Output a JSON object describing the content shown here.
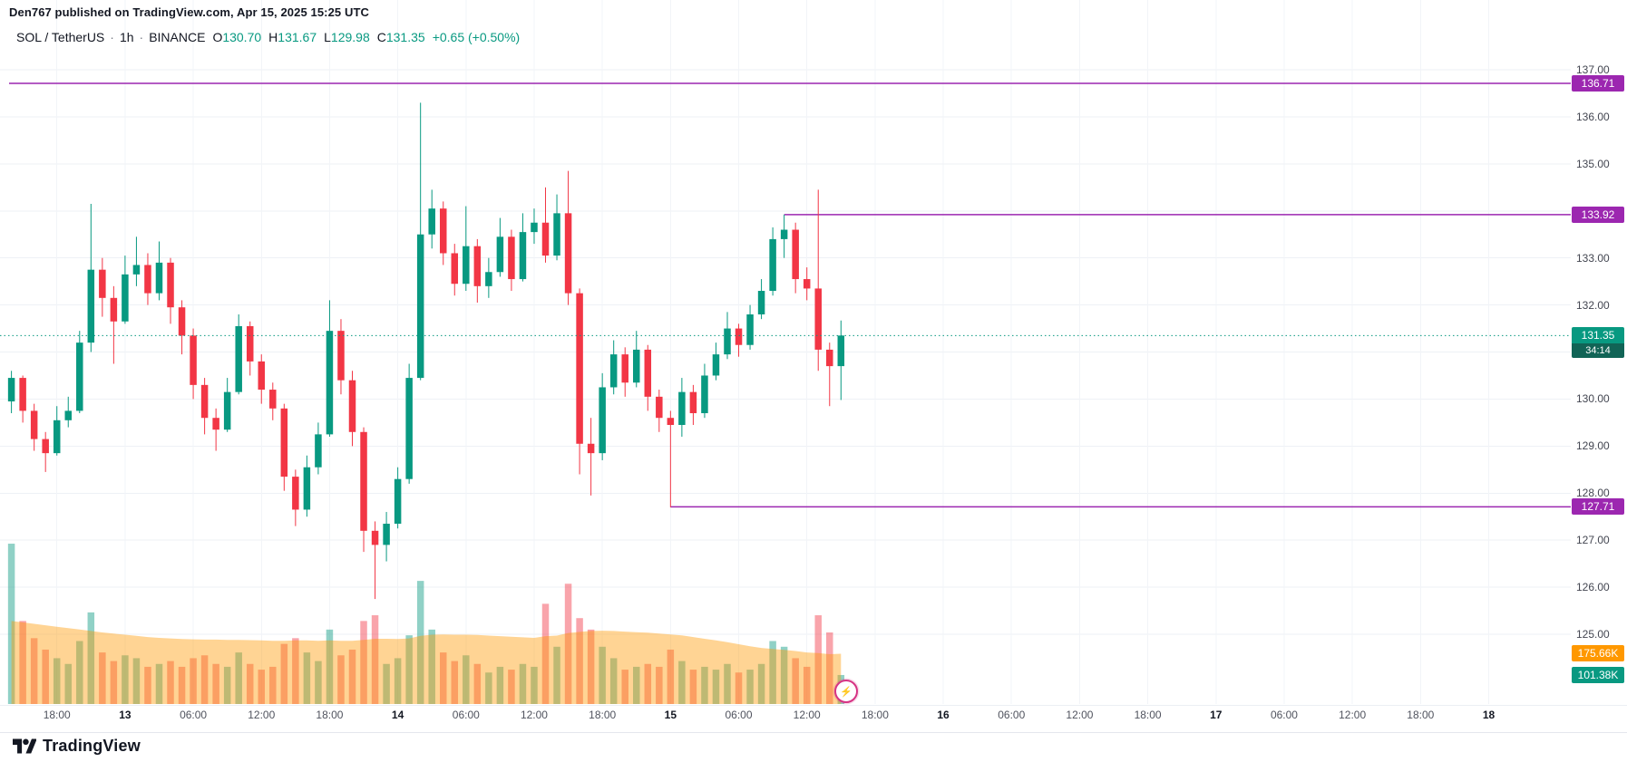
{
  "publisher_line": "Den767 published on TradingView.com, Apr 15, 2025 15:25 UTC",
  "legend": {
    "symbol": "SOL / TetherUS",
    "separator": "·",
    "interval": "1h",
    "exchange": "BINANCE",
    "o_label": "O",
    "o": "130.70",
    "h_label": "H",
    "h": "131.67",
    "l_label": "L",
    "l": "129.98",
    "c_label": "C",
    "c": "131.35",
    "change": "+0.65 (+0.50%)"
  },
  "price_axis": {
    "labels": [
      "137.00",
      "136.00",
      "135.00",
      "134.00",
      "133.00",
      "132.00",
      "131.00",
      "130.00",
      "129.00",
      "128.00",
      "127.00",
      "126.00",
      "125.00"
    ]
  },
  "time_axis": {
    "items": [
      {
        "index": 4,
        "label": "18:00",
        "bold": false
      },
      {
        "index": 10,
        "label": "13",
        "bold": true
      },
      {
        "index": 16,
        "label": "06:00",
        "bold": false
      },
      {
        "index": 22,
        "label": "12:00",
        "bold": false
      },
      {
        "index": 28,
        "label": "18:00",
        "bold": false
      },
      {
        "index": 34,
        "label": "14",
        "bold": true
      },
      {
        "index": 40,
        "label": "06:00",
        "bold": false
      },
      {
        "index": 46,
        "label": "12:00",
        "bold": false
      },
      {
        "index": 52,
        "label": "18:00",
        "bold": false
      },
      {
        "index": 58,
        "label": "15",
        "bold": true
      },
      {
        "index": 64,
        "label": "06:00",
        "bold": false
      },
      {
        "index": 70,
        "label": "12:00",
        "bold": false
      },
      {
        "index": 76,
        "label": "18:00",
        "bold": false
      },
      {
        "index": 82,
        "label": "16",
        "bold": true
      },
      {
        "index": 88,
        "label": "06:00",
        "bold": false
      },
      {
        "index": 94,
        "label": "12:00",
        "bold": false
      },
      {
        "index": 100,
        "label": "18:00",
        "bold": false
      },
      {
        "index": 106,
        "label": "17",
        "bold": true
      },
      {
        "index": 112,
        "label": "06:00",
        "bold": false
      },
      {
        "index": 118,
        "label": "12:00",
        "bold": false
      },
      {
        "index": 124,
        "label": "18:00",
        "bold": false
      },
      {
        "index": 130,
        "label": "18",
        "bold": true
      }
    ]
  },
  "badges": {
    "level_1": "136.71",
    "level_2": "133.92",
    "level_3": "127.71",
    "last_price": "131.35",
    "countdown": "34:14",
    "volume_ma": "175.66K",
    "volume": "101.38K"
  },
  "footer": {
    "brand": "TradingView"
  },
  "marker": {
    "emoji": "⚡"
  },
  "colors": {
    "up": "#089981",
    "down": "#f23645",
    "purple": "#9c27b0",
    "orange": "#ff9800",
    "countdown": "#116456"
  },
  "chart_data": {
    "type": "candlestick",
    "symbol": "SOL / TetherUS",
    "exchange": "BINANCE",
    "interval": "1h",
    "legend_ohlc": {
      "open": 130.7,
      "high": 131.67,
      "low": 129.98,
      "close": 131.35,
      "change": 0.65,
      "change_pct": 0.5
    },
    "axis": {
      "price_min": 125,
      "price_max": 137,
      "grid_step": 1
    },
    "last_price": 131.35,
    "horizontal_lines": [
      {
        "price": 136.71,
        "from_index": 0
      },
      {
        "price": 133.92,
        "from_index": 68
      },
      {
        "price": 127.71,
        "from_index": 58
      }
    ],
    "volume_last_k": 101.38,
    "volume_ma_last_k": 175.66,
    "columns": [
      "time",
      "open",
      "high",
      "low",
      "close",
      "volume_k"
    ],
    "candles": [
      [
        "Apr 12 14:00",
        129.95,
        130.6,
        129.7,
        130.45,
        560
      ],
      [
        "Apr 12 15:00",
        130.45,
        130.5,
        129.5,
        129.75,
        290
      ],
      [
        "Apr 12 16:00",
        129.75,
        129.9,
        128.9,
        129.15,
        230
      ],
      [
        "Apr 12 17:00",
        129.15,
        129.3,
        128.45,
        128.85,
        190
      ],
      [
        "Apr 12 18:00",
        128.85,
        129.85,
        128.8,
        129.55,
        160
      ],
      [
        "Apr 12 19:00",
        129.55,
        130.05,
        129.4,
        129.75,
        140
      ],
      [
        "Apr 12 20:00",
        129.75,
        131.45,
        129.7,
        131.2,
        220
      ],
      [
        "Apr 12 21:00",
        131.2,
        134.15,
        131.0,
        132.75,
        320
      ],
      [
        "Apr 12 22:00",
        132.75,
        133.0,
        131.75,
        132.15,
        180
      ],
      [
        "Apr 12 23:00",
        132.15,
        132.4,
        130.75,
        131.65,
        150
      ],
      [
        "Apr 13 00:00",
        131.65,
        133.05,
        131.6,
        132.65,
        170
      ],
      [
        "Apr 13 01:00",
        132.65,
        133.45,
        132.4,
        132.85,
        160
      ],
      [
        "Apr 13 02:00",
        132.85,
        133.1,
        132.0,
        132.25,
        130
      ],
      [
        "Apr 13 03:00",
        132.25,
        133.35,
        132.1,
        132.9,
        140
      ],
      [
        "Apr 13 04:00",
        132.9,
        133.0,
        131.6,
        131.95,
        150
      ],
      [
        "Apr 13 05:00",
        131.95,
        132.1,
        130.95,
        131.35,
        130
      ],
      [
        "Apr 13 06:00",
        131.35,
        131.5,
        130.0,
        130.3,
        160
      ],
      [
        "Apr 13 07:00",
        130.3,
        130.45,
        129.25,
        129.6,
        170
      ],
      [
        "Apr 13 08:00",
        129.6,
        129.8,
        128.9,
        129.35,
        140
      ],
      [
        "Apr 13 09:00",
        129.35,
        130.45,
        129.3,
        130.15,
        130
      ],
      [
        "Apr 13 10:00",
        130.15,
        131.8,
        130.1,
        131.55,
        180
      ],
      [
        "Apr 13 11:00",
        131.55,
        131.65,
        130.5,
        130.8,
        140
      ],
      [
        "Apr 13 12:00",
        130.8,
        130.95,
        129.9,
        130.2,
        120
      ],
      [
        "Apr 13 13:00",
        130.2,
        130.35,
        129.55,
        129.8,
        130
      ],
      [
        "Apr 13 14:00",
        129.8,
        129.9,
        128.05,
        128.35,
        210
      ],
      [
        "Apr 13 15:00",
        128.35,
        128.5,
        127.3,
        127.65,
        230
      ],
      [
        "Apr 13 16:00",
        127.65,
        128.8,
        127.5,
        128.55,
        180
      ],
      [
        "Apr 13 17:00",
        128.55,
        129.5,
        128.4,
        129.25,
        150
      ],
      [
        "Apr 13 18:00",
        129.25,
        132.1,
        129.2,
        131.45,
        260
      ],
      [
        "Apr 13 19:00",
        131.45,
        131.7,
        130.1,
        130.4,
        170
      ],
      [
        "Apr 13 20:00",
        130.4,
        130.6,
        129.0,
        129.3,
        190
      ],
      [
        "Apr 13 21:00",
        129.3,
        129.4,
        126.75,
        127.2,
        290
      ],
      [
        "Apr 13 22:00",
        127.2,
        127.4,
        125.75,
        126.9,
        310
      ],
      [
        "Apr 13 23:00",
        126.9,
        127.6,
        126.55,
        127.35,
        140
      ],
      [
        "Apr 14 00:00",
        127.35,
        128.55,
        127.25,
        128.3,
        160
      ],
      [
        "Apr 14 01:00",
        128.3,
        130.75,
        128.2,
        130.45,
        240
      ],
      [
        "Apr 14 02:00",
        130.45,
        136.3,
        130.4,
        133.5,
        430
      ],
      [
        "Apr 14 03:00",
        133.5,
        134.45,
        133.2,
        134.05,
        260
      ],
      [
        "Apr 14 04:00",
        134.05,
        134.2,
        132.85,
        133.1,
        180
      ],
      [
        "Apr 14 05:00",
        133.1,
        133.3,
        132.2,
        132.45,
        150
      ],
      [
        "Apr 14 06:00",
        132.45,
        134.1,
        132.3,
        133.25,
        170
      ],
      [
        "Apr 14 07:00",
        133.25,
        133.4,
        132.05,
        132.4,
        140
      ],
      [
        "Apr 14 08:00",
        132.4,
        133.0,
        132.15,
        132.7,
        110
      ],
      [
        "Apr 14 09:00",
        132.7,
        133.85,
        132.6,
        133.45,
        130
      ],
      [
        "Apr 14 10:00",
        133.45,
        133.6,
        132.3,
        132.55,
        120
      ],
      [
        "Apr 14 11:00",
        132.55,
        133.95,
        132.5,
        133.55,
        140
      ],
      [
        "Apr 14 12:00",
        133.55,
        134.05,
        133.3,
        133.75,
        130
      ],
      [
        "Apr 14 13:00",
        133.75,
        134.5,
        132.9,
        133.05,
        350
      ],
      [
        "Apr 14 14:00",
        133.05,
        134.35,
        132.95,
        133.95,
        200
      ],
      [
        "Apr 14 15:00",
        133.95,
        134.85,
        132.0,
        132.25,
        420
      ],
      [
        "Apr 14 16:00",
        132.25,
        132.35,
        128.4,
        129.05,
        300
      ],
      [
        "Apr 14 17:00",
        129.05,
        129.6,
        127.95,
        128.85,
        260
      ],
      [
        "Apr 14 18:00",
        128.85,
        130.55,
        128.7,
        130.25,
        200
      ],
      [
        "Apr 14 19:00",
        130.25,
        131.25,
        130.1,
        130.95,
        160
      ],
      [
        "Apr 14 20:00",
        130.95,
        131.1,
        130.05,
        130.35,
        120
      ],
      [
        "Apr 14 21:00",
        130.35,
        131.45,
        130.25,
        131.05,
        130
      ],
      [
        "Apr 14 22:00",
        131.05,
        131.15,
        129.75,
        130.05,
        140
      ],
      [
        "Apr 14 23:00",
        130.05,
        130.2,
        129.3,
        129.6,
        130
      ],
      [
        "Apr 15 00:00",
        129.6,
        129.75,
        127.7,
        129.45,
        190
      ],
      [
        "Apr 15 01:00",
        129.45,
        130.45,
        129.2,
        130.15,
        150
      ],
      [
        "Apr 15 02:00",
        130.15,
        130.3,
        129.45,
        129.7,
        120
      ],
      [
        "Apr 15 03:00",
        129.7,
        130.75,
        129.6,
        130.5,
        130
      ],
      [
        "Apr 15 04:00",
        130.5,
        131.2,
        130.4,
        130.95,
        120
      ],
      [
        "Apr 15 05:00",
        130.95,
        131.85,
        130.85,
        131.5,
        140
      ],
      [
        "Apr 15 06:00",
        131.5,
        131.6,
        130.9,
        131.15,
        110
      ],
      [
        "Apr 15 07:00",
        131.15,
        132.0,
        131.05,
        131.8,
        120
      ],
      [
        "Apr 15 08:00",
        131.8,
        132.55,
        131.7,
        132.3,
        140
      ],
      [
        "Apr 15 09:00",
        132.3,
        133.65,
        132.2,
        133.4,
        220
      ],
      [
        "Apr 15 10:00",
        133.4,
        133.92,
        133.0,
        133.6,
        200
      ],
      [
        "Apr 15 11:00",
        133.6,
        133.75,
        132.25,
        132.55,
        160
      ],
      [
        "Apr 15 12:00",
        132.55,
        132.8,
        132.1,
        132.35,
        130
      ],
      [
        "Apr 15 13:00",
        132.35,
        134.45,
        130.6,
        131.05,
        310
      ],
      [
        "Apr 15 14:00",
        131.05,
        131.2,
        129.85,
        130.7,
        250
      ],
      [
        "Apr 15 15:00",
        130.7,
        131.67,
        129.98,
        131.35,
        101.38
      ]
    ],
    "volume_ma_k": [
      290,
      285,
      280,
      275,
      270,
      265,
      260,
      255,
      250,
      246,
      242,
      238,
      234,
      231,
      229,
      227,
      226,
      225,
      225,
      224,
      224,
      223,
      222,
      221,
      221,
      222,
      222,
      221,
      222,
      221,
      221,
      224,
      228,
      228,
      227,
      229,
      238,
      242,
      243,
      242,
      242,
      241,
      239,
      237,
      235,
      233,
      231,
      237,
      239,
      248,
      252,
      255,
      256,
      255,
      253,
      251,
      249,
      246,
      243,
      240,
      234,
      228,
      222,
      216,
      209,
      202,
      196,
      192,
      189,
      185,
      180,
      178,
      174,
      175.66
    ]
  }
}
